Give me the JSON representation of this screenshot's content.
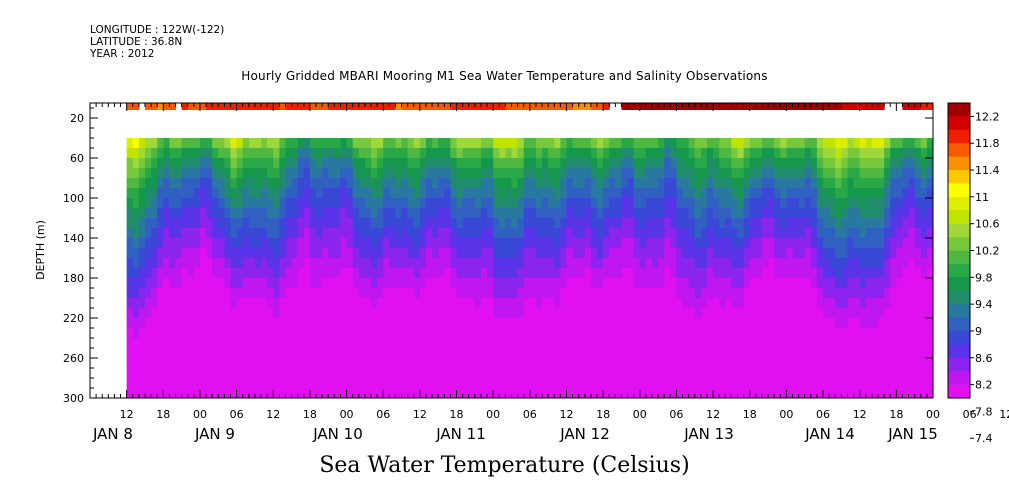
{
  "header": {
    "longitude": "LONGITUDE : 122W(-122)",
    "latitude": "LATITUDE : 36.8N",
    "year": "YEAR : 2012"
  },
  "chart_data": {
    "type": "heatmap",
    "title": "Hourly Gridded MBARI Mooring M1 Sea Water Temperature and Salinity Observations",
    "variable_title": "Sea Water Temperature (Celsius)",
    "ylabel": "DEPTH (m)",
    "ylim": [
      300,
      5
    ],
    "y_ticks": [
      20,
      60,
      100,
      140,
      180,
      220,
      260,
      300
    ],
    "x_hour_labels": [
      "12",
      "18",
      "00",
      "06",
      "12",
      "18",
      "00",
      "06",
      "12",
      "18",
      "00",
      "06",
      "12",
      "18",
      "00",
      "06",
      "12",
      "18",
      "00",
      "06",
      "12",
      "18",
      "00",
      "06",
      "12",
      "18",
      "00",
      "06"
    ],
    "x_day_labels": [
      "JAN  8",
      "JAN  9",
      "JAN 10",
      "JAN 11",
      "JAN 12",
      "JAN 13",
      "JAN 14",
      "JAN 15"
    ],
    "x_range_hours": [
      0,
      138
    ],
    "colorbar_labels": [
      "12.2",
      "11.8",
      "11.4",
      "11",
      "10.6",
      "10.2",
      "9.8",
      "9.4",
      "9",
      "8.6",
      "8.2",
      "7.8",
      "7.4"
    ],
    "colorbar_colors": [
      "#a00000",
      "#d40000",
      "#ee2000",
      "#f85a00",
      "#fa9000",
      "#ffc800",
      "#ffff00",
      "#dfee00",
      "#bfe400",
      "#9fd838",
      "#78c83c",
      "#50b840",
      "#2aa848",
      "#16984c",
      "#208c6c",
      "#2878a0",
      "#3060c0",
      "#3a48d8",
      "#5a34e8",
      "#8c24f0",
      "#c016f0",
      "#e010f0"
    ],
    "color_levels": [
      12.4,
      12.2,
      12.0,
      11.8,
      11.6,
      11.4,
      11.2,
      11.0,
      10.8,
      10.6,
      10.4,
      10.2,
      10.0,
      9.8,
      9.6,
      9.4,
      9.2,
      9.0,
      8.8,
      8.6,
      8.4,
      8.2,
      8.0,
      7.8,
      7.6,
      7.4
    ],
    "surface_series": {
      "depth_range_m": [
        5,
        12
      ],
      "start_hour": 6,
      "values": [
        11.6,
        11.6,
        null,
        11.6,
        11.6,
        11.5,
        11.6,
        11.6,
        null,
        11.8,
        11.6,
        11.6,
        11.6,
        11.8,
        11.8,
        11.8,
        11.8,
        11.8,
        11.8,
        11.8,
        11.8,
        11.8,
        11.8,
        11.8,
        11.8,
        11.6,
        11.8,
        11.8,
        11.8,
        11.8,
        11.6,
        11.6,
        11.6,
        11.8,
        11.8,
        11.8,
        11.8,
        11.8,
        11.8,
        11.8,
        11.8,
        11.8,
        11.8,
        11.8,
        11.5,
        11.6,
        11.6,
        11.6,
        11.6,
        11.6,
        11.6,
        11.6,
        11.6,
        11.8,
        11.8,
        11.8,
        11.8,
        11.8,
        11.8,
        11.8,
        11.8,
        11.8,
        11.6,
        11.6,
        11.6,
        11.6,
        11.6,
        11.6,
        11.6,
        11.6,
        11.6,
        11.6,
        11.6,
        11.4,
        11.4,
        11.4,
        11.6,
        11.6,
        11.8,
        null,
        null,
        12.4,
        12.4,
        12.4,
        12.4,
        12.4,
        12.4,
        12.4,
        12.4,
        12.4,
        12.4,
        12.2,
        12.2,
        12.2,
        12.2,
        12.2,
        12.2,
        12.2,
        12.2,
        12.2,
        12.4,
        12.4,
        12.4,
        12.2,
        12.2,
        12.2,
        12.2,
        12.2,
        12.2,
        12.2,
        12.2,
        12.2,
        12.2,
        12.2,
        12.2,
        12.2,
        12.2,
        12.0,
        12.0,
        12.0,
        12.0,
        12.0,
        12.0,
        12.0,
        null,
        null,
        null,
        12.0,
        12.0,
        12.0,
        11.8,
        11.8,
        11.8,
        11.8,
        11.8
      ]
    },
    "profile_start_depth_m": 40,
    "profile_start_hour": 6
  }
}
